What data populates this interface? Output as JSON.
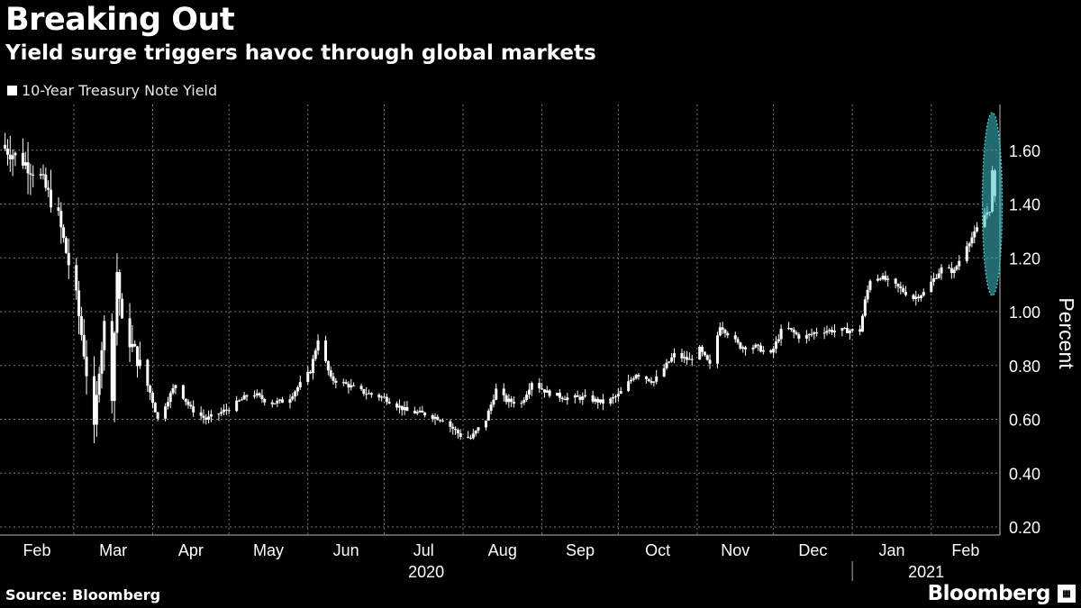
{
  "header": {
    "title": "Breaking Out",
    "subtitle": "Yield surge triggers havoc through global markets"
  },
  "footer": {
    "source": "Source: Bloomberg",
    "brand": "Bloomberg"
  },
  "colors": {
    "background": "#000000",
    "candle": "#ffffff",
    "highlight": "#3fc1c9",
    "grid": "#777777"
  },
  "chart_data": {
    "type": "candlestick",
    "title": "Breaking Out",
    "subtitle": "Yield surge triggers havoc through global markets",
    "legend": [
      {
        "name": "10-Year Treasury Note Yield",
        "color": "#ffffff"
      }
    ],
    "legend_position": "top-left",
    "ylabel": "Percent",
    "y_axis_side": "right",
    "ylim": [
      0.17,
      1.77
    ],
    "yticks": [
      "0.20",
      "0.40",
      "0.60",
      "0.80",
      "1.00",
      "1.20",
      "1.40",
      "1.60"
    ],
    "xlim": [
      "2020-02-01",
      "2021-02-28"
    ],
    "month_labels": [
      {
        "label": "Feb",
        "date": "2020-02-01"
      },
      {
        "label": "Mar",
        "date": "2020-03-01"
      },
      {
        "label": "Apr",
        "date": "2020-04-01"
      },
      {
        "label": "May",
        "date": "2020-05-01"
      },
      {
        "label": "Jun",
        "date": "2020-06-01"
      },
      {
        "label": "Jul",
        "date": "2020-07-01"
      },
      {
        "label": "Aug",
        "date": "2020-08-01"
      },
      {
        "label": "Sep",
        "date": "2020-09-01"
      },
      {
        "label": "Oct",
        "date": "2020-10-01"
      },
      {
        "label": "Nov",
        "date": "2020-11-01"
      },
      {
        "label": "Dec",
        "date": "2020-12-01"
      },
      {
        "label": "Jan",
        "date": "2021-01-01"
      },
      {
        "label": "Feb",
        "date": "2021-02-01"
      }
    ],
    "year_labels": [
      {
        "label": "2020",
        "start": "2020-02-01",
        "end": "2021-01-01"
      },
      {
        "label": "2021",
        "start": "2021-01-01",
        "end": "2021-02-28"
      }
    ],
    "grid": true,
    "highlight": {
      "shape": "ellipse",
      "x": "2021-02-25",
      "y_range": [
        1.06,
        1.74
      ]
    },
    "series": [
      {
        "name": "10-Year Treasury Note Yield",
        "anchors": [
          [
            "2020-02-01",
            1.62
          ],
          [
            "2020-02-10",
            1.56
          ],
          [
            "2020-02-17",
            1.5
          ],
          [
            "2020-02-24",
            1.35
          ],
          [
            "2020-03-02",
            1.05
          ],
          [
            "2020-03-05",
            0.85
          ],
          [
            "2020-03-09",
            0.55
          ],
          [
            "2020-03-11",
            0.8
          ],
          [
            "2020-03-13",
            0.95
          ],
          [
            "2020-03-16",
            0.7
          ],
          [
            "2020-03-18",
            1.15
          ],
          [
            "2020-03-20",
            0.95
          ],
          [
            "2020-03-25",
            0.85
          ],
          [
            "2020-03-31",
            0.7
          ],
          [
            "2020-04-03",
            0.6
          ],
          [
            "2020-04-10",
            0.73
          ],
          [
            "2020-04-16",
            0.64
          ],
          [
            "2020-04-22",
            0.6
          ],
          [
            "2020-05-01",
            0.64
          ],
          [
            "2020-05-10",
            0.7
          ],
          [
            "2020-05-17",
            0.66
          ],
          [
            "2020-05-24",
            0.67
          ],
          [
            "2020-06-02",
            0.78
          ],
          [
            "2020-06-05",
            0.9
          ],
          [
            "2020-06-10",
            0.75
          ],
          [
            "2020-06-16",
            0.73
          ],
          [
            "2020-06-23",
            0.7
          ],
          [
            "2020-07-01",
            0.68
          ],
          [
            "2020-07-10",
            0.63
          ],
          [
            "2020-07-17",
            0.62
          ],
          [
            "2020-07-24",
            0.6
          ],
          [
            "2020-07-31",
            0.54
          ],
          [
            "2020-08-04",
            0.53
          ],
          [
            "2020-08-10",
            0.6
          ],
          [
            "2020-08-14",
            0.71
          ],
          [
            "2020-08-18",
            0.67
          ],
          [
            "2020-08-24",
            0.66
          ],
          [
            "2020-08-28",
            0.74
          ],
          [
            "2020-09-03",
            0.7
          ],
          [
            "2020-09-10",
            0.68
          ],
          [
            "2020-09-18",
            0.68
          ],
          [
            "2020-09-26",
            0.66
          ],
          [
            "2020-10-01",
            0.69
          ],
          [
            "2020-10-08",
            0.77
          ],
          [
            "2020-10-15",
            0.74
          ],
          [
            "2020-10-23",
            0.84
          ],
          [
            "2020-10-29",
            0.82
          ],
          [
            "2020-11-02",
            0.86
          ],
          [
            "2020-11-06",
            0.8
          ],
          [
            "2020-11-10",
            0.95
          ],
          [
            "2020-11-18",
            0.87
          ],
          [
            "2020-11-24",
            0.87
          ],
          [
            "2020-11-30",
            0.84
          ],
          [
            "2020-12-05",
            0.95
          ],
          [
            "2020-12-12",
            0.9
          ],
          [
            "2020-12-19",
            0.93
          ],
          [
            "2020-12-28",
            0.93
          ],
          [
            "2021-01-04",
            0.93
          ],
          [
            "2021-01-06",
            1.04
          ],
          [
            "2021-01-08",
            1.12
          ],
          [
            "2021-01-12",
            1.13
          ],
          [
            "2021-01-19",
            1.09
          ],
          [
            "2021-01-25",
            1.05
          ],
          [
            "2021-01-29",
            1.07
          ],
          [
            "2021-02-05",
            1.16
          ],
          [
            "2021-02-10",
            1.15
          ],
          [
            "2021-02-15",
            1.25
          ],
          [
            "2021-02-18",
            1.29
          ],
          [
            "2021-02-22",
            1.36
          ],
          [
            "2021-02-24",
            1.38
          ],
          [
            "2021-02-25",
            1.52
          ],
          [
            "2021-02-26",
            1.42
          ]
        ]
      }
    ]
  }
}
